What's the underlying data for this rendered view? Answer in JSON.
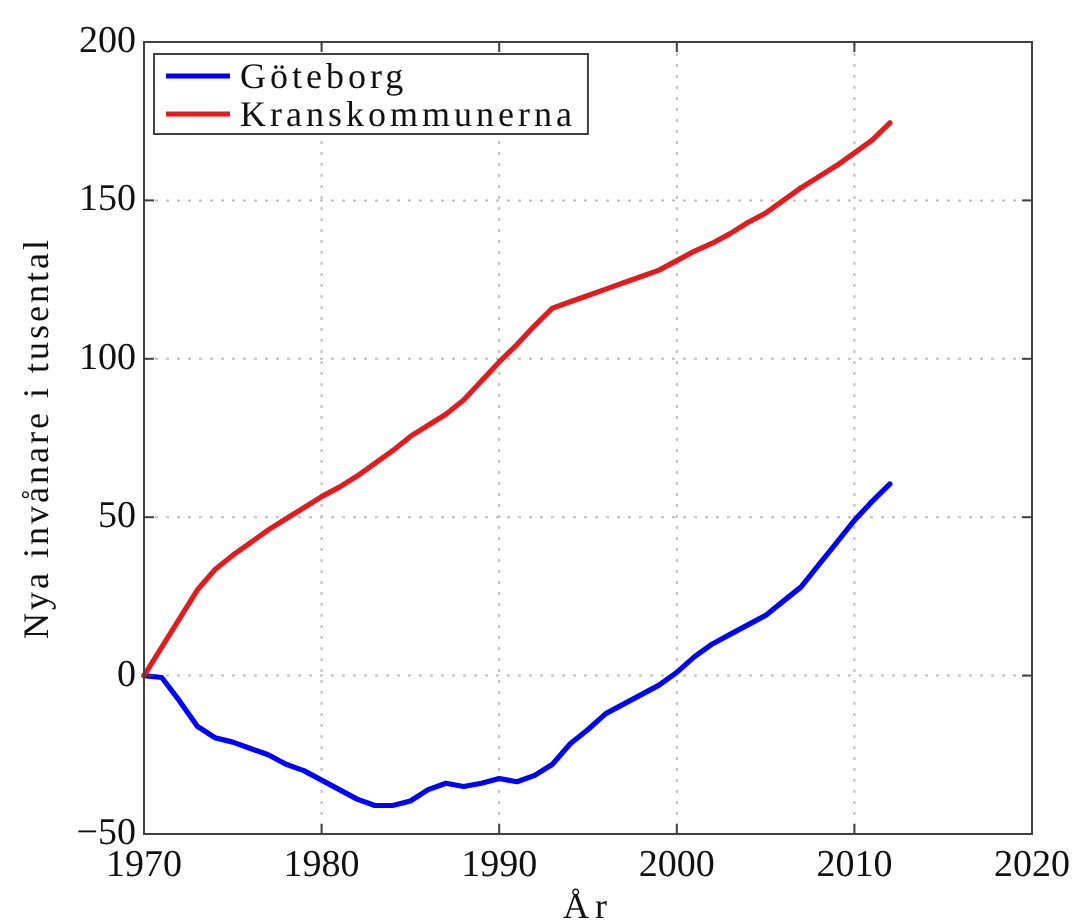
{
  "chart_data": {
    "type": "line",
    "xlabel": "År",
    "ylabel": "Nya invånare i tusental",
    "x": [
      1970,
      1971,
      1972,
      1973,
      1974,
      1975,
      1976,
      1977,
      1978,
      1979,
      1980,
      1981,
      1982,
      1983,
      1984,
      1985,
      1986,
      1987,
      1988,
      1989,
      1990,
      1991,
      1992,
      1993,
      1994,
      1995,
      1996,
      1997,
      1998,
      1999,
      2000,
      2001,
      2002,
      2003,
      2004,
      2005,
      2006,
      2007,
      2008,
      2009,
      2010,
      2011,
      2012
    ],
    "series": [
      {
        "name": "Göteborg",
        "color": "#0000ff",
        "values": [
          0,
          -0.6,
          -8,
          -16,
          -19.6,
          -21,
          -23,
          -25,
          -28,
          -30,
          -33,
          -36,
          -39,
          -41,
          -41,
          -39.6,
          -36,
          -34,
          -35,
          -34,
          -32.5,
          -33.5,
          -31.5,
          -28,
          -21.5,
          -17,
          -12,
          -9,
          -6,
          -3,
          1,
          6,
          10,
          13,
          16,
          19,
          23.5,
          28,
          35,
          42,
          49,
          55,
          60.5
        ]
      },
      {
        "name": "Kranskommunerna",
        "color": "#e41a1c",
        "values": [
          0,
          9,
          18,
          27,
          33.5,
          38,
          42,
          46,
          49.5,
          53,
          56.5,
          59.5,
          63,
          67,
          71,
          75.5,
          79,
          82.5,
          87,
          93,
          99,
          104.5,
          110.5,
          116,
          118,
          120,
          122,
          124,
          126,
          128,
          131,
          134,
          136.5,
          139.5,
          143,
          146,
          150,
          154,
          157.5,
          161,
          165,
          169,
          174.5
        ]
      }
    ],
    "xlim": [
      1970,
      2020
    ],
    "ylim": [
      -50,
      200
    ],
    "xticks": [
      1970,
      1980,
      1990,
      2000,
      2010,
      2020
    ],
    "yticks": [
      -50,
      0,
      50,
      100,
      150,
      200
    ],
    "grid": true,
    "legend": "top left"
  }
}
